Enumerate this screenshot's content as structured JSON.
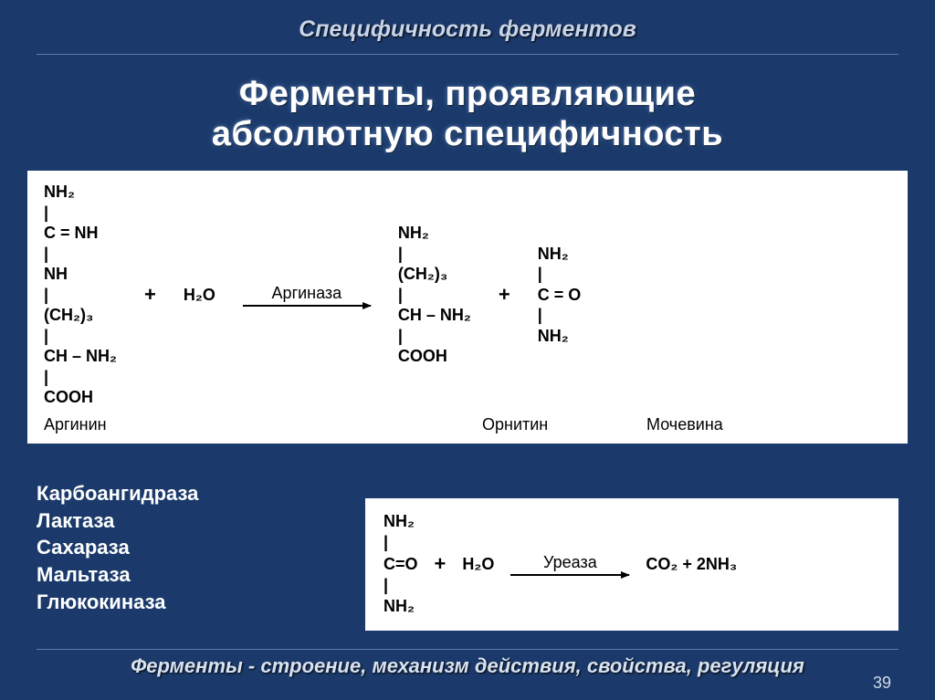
{
  "header": "Специфичность ферментов",
  "title_line1": "Ферменты, проявляющие",
  "title_line2": "абсолютную специфичность",
  "reaction1": {
    "reactant1": {
      "lines": [
        "NH₂",
        "|",
        "C = NH",
        "|",
        "NH",
        "|",
        "(CH₂)₃",
        "|",
        "CH – NH₂",
        "|",
        "COOH"
      ],
      "label": "Аргинин"
    },
    "plus1": "+",
    "reactant2": "H₂O",
    "enzyme": "Аргиназа",
    "product1": {
      "lines": [
        "NH₂",
        "|",
        "(CH₂)₃",
        "|",
        "CH – NH₂",
        "|",
        "COOH"
      ],
      "label": "Орнитин"
    },
    "plus2": "+",
    "product2": {
      "lines": [
        "NH₂",
        "|",
        "C = O",
        "|",
        "NH₂"
      ],
      "label": "Мочевина"
    }
  },
  "enzymes": [
    "Карбоангидраза",
    "Лактаза",
    "Сахараза",
    "Мальтаза",
    "Глюкокиназа"
  ],
  "reaction2": {
    "reactant1_lines": [
      "NH₂",
      "|",
      "C=O",
      "|",
      "NH₂"
    ],
    "plus1": "+",
    "reactant2": "H₂O",
    "enzyme": "Уреаза",
    "products": "CO₂  +  2NH₃"
  },
  "footer": "Ферменты - строение, механизм действия, свойства, регуляция",
  "page": "39",
  "colors": {
    "background": "#1b3a6b",
    "panel": "#ffffff",
    "text_light": "#ffffff",
    "header_text": "#c8d4e8",
    "divider": "#5a7db3"
  }
}
